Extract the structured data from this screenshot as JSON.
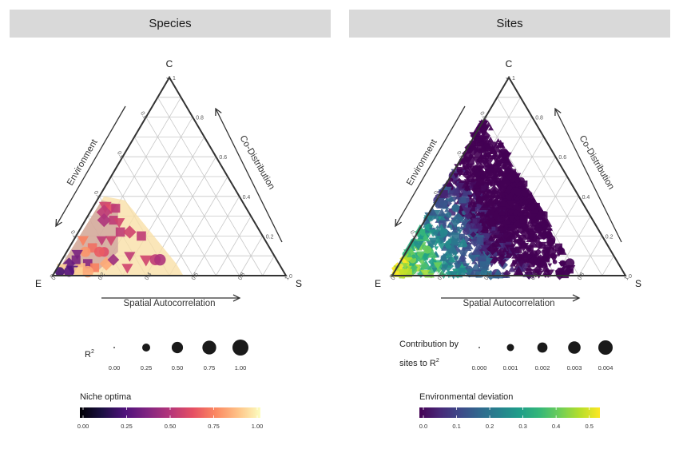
{
  "chart_data": [
    {
      "type": "scatter",
      "subtype": "ternary",
      "title": "Species",
      "vertices": {
        "top": "C",
        "left": "E",
        "right": "S"
      },
      "axis_titles": {
        "left": "Environment",
        "right": "Co-Distribution",
        "bottom": "Spatial Autocorrelation"
      },
      "tick_labels": [
        "0",
        "0.2",
        "0.4",
        "0.6",
        "0.8",
        "1"
      ],
      "grid": true,
      "size_legend": {
        "title": "R",
        "superscript": "2",
        "labels": [
          "0.00",
          "0.25",
          "0.50",
          "0.75",
          "1.00"
        ],
        "values": [
          0.0,
          0.25,
          0.5,
          0.75,
          1.0
        ]
      },
      "color_legend": {
        "title": "Niche optima",
        "palette": "magma",
        "labels": [
          "0.00",
          "0.25",
          "0.50",
          "0.75",
          "1.00"
        ],
        "values": [
          0.0,
          0.25,
          0.5,
          0.75,
          1.0
        ],
        "range": [
          0,
          1
        ]
      },
      "hull_colors": [
        "#f9e0a8",
        "#c99b9b"
      ],
      "points": [
        {
          "E": 0.6,
          "S": 0.05,
          "C": 0.35,
          "r2": 0.6,
          "color": 0.55,
          "shape": "triangle-down"
        },
        {
          "E": 0.58,
          "S": 0.08,
          "C": 0.34,
          "r2": 0.55,
          "color": 0.6,
          "shape": "triangle-down"
        },
        {
          "E": 0.56,
          "S": 0.1,
          "C": 0.34,
          "r2": 0.5,
          "color": 0.5,
          "shape": "square"
        },
        {
          "E": 0.62,
          "S": 0.06,
          "C": 0.32,
          "r2": 0.7,
          "color": 0.5,
          "shape": "diamond"
        },
        {
          "E": 0.64,
          "S": 0.08,
          "C": 0.28,
          "r2": 0.6,
          "color": 0.45,
          "shape": "diamond"
        },
        {
          "E": 0.6,
          "S": 0.12,
          "C": 0.28,
          "r2": 0.5,
          "color": 0.5,
          "shape": "square"
        },
        {
          "E": 0.58,
          "S": 0.15,
          "C": 0.27,
          "r2": 0.5,
          "color": 0.55,
          "shape": "triangle-down"
        },
        {
          "E": 0.6,
          "S": 0.18,
          "C": 0.22,
          "r2": 0.55,
          "color": 0.5,
          "shape": "square"
        },
        {
          "E": 0.56,
          "S": 0.22,
          "C": 0.22,
          "r2": 0.55,
          "color": 0.55,
          "shape": "diamond"
        },
        {
          "E": 0.52,
          "S": 0.28,
          "C": 0.2,
          "r2": 0.55,
          "color": 0.5,
          "shape": "square"
        },
        {
          "E": 0.66,
          "S": 0.16,
          "C": 0.18,
          "r2": 0.5,
          "color": 0.55,
          "shape": "triangle-down"
        },
        {
          "E": 0.7,
          "S": 0.12,
          "C": 0.18,
          "r2": 0.45,
          "color": 0.5,
          "shape": "triangle-down"
        },
        {
          "E": 0.72,
          "S": 0.16,
          "C": 0.12,
          "r2": 0.45,
          "color": 0.6,
          "shape": "circle"
        },
        {
          "E": 0.62,
          "S": 0.28,
          "C": 0.1,
          "r2": 0.5,
          "color": 0.5,
          "shape": "triangle-down"
        },
        {
          "E": 0.56,
          "S": 0.36,
          "C": 0.08,
          "r2": 0.6,
          "color": 0.55,
          "shape": "triangle-down"
        },
        {
          "E": 0.52,
          "S": 0.4,
          "C": 0.08,
          "r2": 0.55,
          "color": 0.5,
          "shape": "circle"
        },
        {
          "E": 0.5,
          "S": 0.42,
          "C": 0.08,
          "r2": 0.6,
          "color": 0.45,
          "shape": "circle"
        },
        {
          "E": 0.78,
          "S": 0.04,
          "C": 0.18,
          "r2": 0.5,
          "color": 0.75,
          "shape": "triangle-down"
        },
        {
          "E": 0.76,
          "S": 0.1,
          "C": 0.14,
          "r2": 0.55,
          "color": 0.7,
          "shape": "square"
        },
        {
          "E": 0.74,
          "S": 0.14,
          "C": 0.12,
          "r2": 0.5,
          "color": 0.65,
          "shape": "circle"
        },
        {
          "E": 0.8,
          "S": 0.08,
          "C": 0.12,
          "r2": 0.5,
          "color": 0.8,
          "shape": "circle"
        },
        {
          "E": 0.82,
          "S": 0.12,
          "C": 0.06,
          "r2": 0.55,
          "color": 0.35,
          "shape": "square"
        },
        {
          "E": 0.84,
          "S": 0.05,
          "C": 0.11,
          "r2": 0.5,
          "color": 0.3,
          "shape": "triangle-down"
        },
        {
          "E": 0.74,
          "S": 0.2,
          "C": 0.06,
          "r2": 0.6,
          "color": 0.85,
          "shape": "diamond"
        },
        {
          "E": 0.8,
          "S": 0.16,
          "C": 0.04,
          "r2": 0.5,
          "color": 0.75,
          "shape": "square"
        },
        {
          "E": 0.86,
          "S": 0.1,
          "C": 0.04,
          "r2": 0.55,
          "color": 0.9,
          "shape": "square"
        },
        {
          "E": 0.86,
          "S": 0.06,
          "C": 0.08,
          "r2": 0.5,
          "color": 0.3,
          "shape": "square"
        },
        {
          "E": 0.9,
          "S": 0.04,
          "C": 0.06,
          "r2": 0.5,
          "color": 0.25,
          "shape": "diamond"
        },
        {
          "E": 0.9,
          "S": 0.07,
          "C": 0.03,
          "r2": 0.5,
          "color": 0.2,
          "shape": "triangle-down"
        },
        {
          "E": 0.94,
          "S": 0.02,
          "C": 0.04,
          "r2": 0.45,
          "color": 0.95,
          "shape": "triangle-down"
        },
        {
          "E": 0.84,
          "S": 0.14,
          "C": 0.02,
          "r2": 0.6,
          "color": 0.85,
          "shape": "circle"
        },
        {
          "E": 0.88,
          "S": 0.1,
          "C": 0.02,
          "r2": 0.5,
          "color": 0.95,
          "shape": "square"
        },
        {
          "E": 0.92,
          "S": 0.06,
          "C": 0.02,
          "r2": 0.5,
          "color": 0.2,
          "shape": "circle"
        },
        {
          "E": 0.96,
          "S": 0.02,
          "C": 0.02,
          "r2": 0.4,
          "color": 0.15,
          "shape": "circle"
        },
        {
          "E": 0.7,
          "S": 0.22,
          "C": 0.08,
          "r2": 0.45,
          "color": 0.4,
          "shape": "diamond"
        },
        {
          "E": 0.66,
          "S": 0.3,
          "C": 0.04,
          "r2": 0.5,
          "color": 0.55,
          "shape": "triangle-down"
        }
      ]
    },
    {
      "type": "scatter",
      "subtype": "ternary",
      "title": "Sites",
      "vertices": {
        "top": "C",
        "left": "E",
        "right": "S"
      },
      "axis_titles": {
        "left": "Environment",
        "right": "Co-Distribution",
        "bottom": "Spatial Autocorrelation"
      },
      "tick_labels": [
        "0",
        "0.2",
        "0.4",
        "0.6",
        "0.8",
        "1"
      ],
      "grid": true,
      "size_legend": {
        "title_lines": [
          "Contribution by",
          "sites to R"
        ],
        "superscript": "2",
        "labels": [
          "0.000",
          "0.001",
          "0.002",
          "0.003",
          "0.004"
        ],
        "values": [
          0.0,
          0.001,
          0.002,
          0.003,
          0.004
        ]
      },
      "color_legend": {
        "title": "Environmental deviation",
        "palette": "viridis",
        "labels": [
          "0.0",
          "0.1",
          "0.2",
          "0.3",
          "0.4",
          "0.5"
        ],
        "values": [
          0.0,
          0.1,
          0.2,
          0.3,
          0.4,
          0.5
        ],
        "range": [
          0,
          0.52
        ]
      },
      "point_cloud": {
        "count": 1400,
        "region": "E 0.20-1.0, S 0.0-0.80, C 0.0-0.80",
        "color_trend": "high environmental deviation (yellow) near the E corner, low (purple) toward S and C"
      }
    }
  ]
}
